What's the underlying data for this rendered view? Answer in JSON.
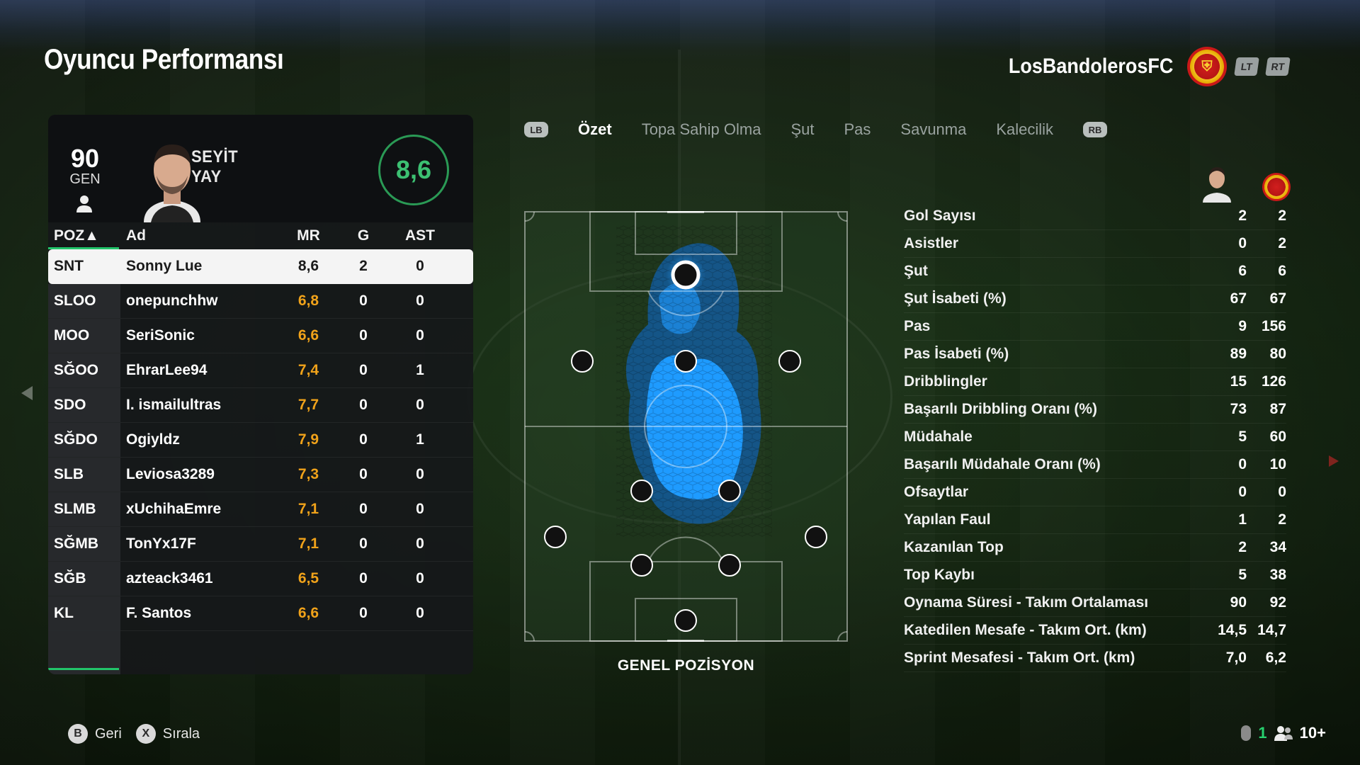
{
  "header": {
    "title": "Oyuncu Performansı",
    "club_name": "LosBandolerosFC",
    "lt": "LT",
    "rt": "RT"
  },
  "player_card": {
    "overall": "90",
    "overall_label": "GEN",
    "first_name": "SEYİT",
    "last_name": "YAY",
    "match_rating": "8,6"
  },
  "table": {
    "headers": {
      "pos": "POZ▲",
      "name": "Ad",
      "mr": "MR",
      "g": "G",
      "ast": "AST"
    },
    "rows": [
      {
        "pos": "SNT",
        "name": "Sonny Lue",
        "mr": "8,6",
        "g": "2",
        "ast": "0",
        "selected": true
      },
      {
        "pos": "SLOO",
        "name": "onepunchhw",
        "mr": "6,8",
        "g": "0",
        "ast": "0"
      },
      {
        "pos": "MOO",
        "name": "SeriSonic",
        "mr": "6,6",
        "g": "0",
        "ast": "0"
      },
      {
        "pos": "SĞOO",
        "name": "EhrarLee94",
        "mr": "7,4",
        "g": "0",
        "ast": "1"
      },
      {
        "pos": "SDO",
        "name": "I. ismailultras",
        "mr": "7,7",
        "g": "0",
        "ast": "0"
      },
      {
        "pos": "SĞDO",
        "name": "Ogiyldz",
        "mr": "7,9",
        "g": "0",
        "ast": "1"
      },
      {
        "pos": "SLB",
        "name": "Leviosa3289",
        "mr": "7,3",
        "g": "0",
        "ast": "0"
      },
      {
        "pos": "SLMB",
        "name": "xUchihaEmre",
        "mr": "7,1",
        "g": "0",
        "ast": "0"
      },
      {
        "pos": "SĞMB",
        "name": "TonYx17F",
        "mr": "7,1",
        "g": "0",
        "ast": "0"
      },
      {
        "pos": "SĞB",
        "name": "azteack3461",
        "mr": "6,5",
        "g": "0",
        "ast": "0"
      },
      {
        "pos": "KL",
        "name": "F. Santos",
        "mr": "6,6",
        "g": "0",
        "ast": "0"
      }
    ]
  },
  "tabs": {
    "lb": "LB",
    "rb": "RB",
    "items": [
      "Özet",
      "Topa Sahip Olma",
      "Şut",
      "Pas",
      "Savunma",
      "Kalecilik"
    ],
    "active_index": 0
  },
  "pitch": {
    "label": "GENEL POZİSYON",
    "heatmap_color": "#1e9bff",
    "formation": [
      {
        "role": "SNT",
        "selected": true
      },
      {
        "role": "SLOO"
      },
      {
        "role": "MOO"
      },
      {
        "role": "SĞOO"
      },
      {
        "role": "SDO"
      },
      {
        "role": "SĞDO"
      },
      {
        "role": "SLB"
      },
      {
        "role": "SLMB"
      },
      {
        "role": "SĞMB"
      },
      {
        "role": "SĞB"
      },
      {
        "role": "KL"
      }
    ]
  },
  "stats": [
    {
      "label": "Gol Sayısı",
      "player": "2",
      "team": "2"
    },
    {
      "label": "Asistler",
      "player": "0",
      "team": "2"
    },
    {
      "label": "Şut",
      "player": "6",
      "team": "6"
    },
    {
      "label": "Şut İsabeti (%)",
      "player": "67",
      "team": "67"
    },
    {
      "label": "Pas",
      "player": "9",
      "team": "156"
    },
    {
      "label": "Pas İsabeti (%)",
      "player": "89",
      "team": "80"
    },
    {
      "label": "Dribblingler",
      "player": "15",
      "team": "126"
    },
    {
      "label": "Başarılı Dribbling Oranı (%)",
      "player": "73",
      "team": "87"
    },
    {
      "label": "Müdahale",
      "player": "5",
      "team": "60"
    },
    {
      "label": "Başarılı Müdahale Oranı (%)",
      "player": "0",
      "team": "10"
    },
    {
      "label": "Ofsaytlar",
      "player": "0",
      "team": "0"
    },
    {
      "label": "Yapılan Faul",
      "player": "1",
      "team": "2"
    },
    {
      "label": "Kazanılan Top",
      "player": "2",
      "team": "34"
    },
    {
      "label": "Top Kaybı",
      "player": "5",
      "team": "38"
    },
    {
      "label": "Oynama Süresi - Takım Ortalaması",
      "player": "90",
      "team": "92"
    },
    {
      "label": "Katedilen Mesafe - Takım Ort. (km)",
      "player": "14,5",
      "team": "14,7"
    },
    {
      "label": "Sprint Mesafesi - Takım Ort. (km)",
      "player": "7,0",
      "team": "6,2"
    }
  ],
  "footer": {
    "back_key": "B",
    "back_label": "Geri",
    "sort_key": "X",
    "sort_label": "Sırala",
    "party_count": "1",
    "players_online": "10+"
  },
  "colors": {
    "accent_green": "#22c46a",
    "rating_orange": "#f0a21a",
    "heatmap_blue": "#1e9bff"
  }
}
